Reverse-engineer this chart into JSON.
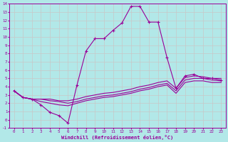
{
  "xlabel": "Windchill (Refroidissement éolien,°C)",
  "bg_color": "#b2e8e8",
  "grid_color": "#d0d0d0",
  "line_color": "#990099",
  "xlim": [
    -0.5,
    23.5
  ],
  "ylim": [
    -1,
    14
  ],
  "xticks": [
    0,
    1,
    2,
    3,
    4,
    5,
    6,
    7,
    8,
    9,
    10,
    11,
    12,
    13,
    14,
    15,
    16,
    17,
    18,
    19,
    20,
    21,
    22,
    23
  ],
  "yticks": [
    -1,
    0,
    1,
    2,
    3,
    4,
    5,
    6,
    7,
    8,
    9,
    10,
    11,
    12,
    13,
    14
  ],
  "series1_x": [
    0,
    1,
    2,
    3,
    4,
    5,
    6,
    7,
    8,
    9,
    10,
    11,
    12,
    13,
    14,
    15,
    16,
    17,
    18,
    19,
    20,
    21,
    22,
    23
  ],
  "series1_y": [
    3.5,
    2.7,
    2.5,
    1.8,
    0.9,
    0.5,
    -0.4,
    4.2,
    8.3,
    9.8,
    9.8,
    10.8,
    11.7,
    13.7,
    13.7,
    11.8,
    11.8,
    7.5,
    3.8,
    5.3,
    5.5,
    5.0,
    5.0,
    4.8
  ],
  "series2_x": [
    0,
    1,
    2,
    3,
    4,
    5,
    6,
    7,
    8,
    9,
    10,
    11,
    12,
    13,
    14,
    15,
    16,
    17,
    18,
    19,
    20,
    21,
    22,
    23
  ],
  "series2_y": [
    3.5,
    2.7,
    2.5,
    2.5,
    2.5,
    2.3,
    2.3,
    2.5,
    2.8,
    3.0,
    3.2,
    3.3,
    3.5,
    3.7,
    4.0,
    4.2,
    4.5,
    4.7,
    3.8,
    5.1,
    5.3,
    5.2,
    5.0,
    5.0
  ],
  "series3_x": [
    0,
    1,
    2,
    3,
    4,
    5,
    6,
    7,
    8,
    9,
    10,
    11,
    12,
    13,
    14,
    15,
    16,
    17,
    18,
    19,
    20,
    21,
    22,
    23
  ],
  "series3_y": [
    3.5,
    2.7,
    2.5,
    2.5,
    2.3,
    2.2,
    2.0,
    2.2,
    2.5,
    2.7,
    2.9,
    3.0,
    3.2,
    3.4,
    3.7,
    3.9,
    4.2,
    4.4,
    3.5,
    4.8,
    5.0,
    5.0,
    4.8,
    4.7
  ],
  "series4_x": [
    0,
    1,
    2,
    3,
    4,
    5,
    6,
    7,
    8,
    9,
    10,
    11,
    12,
    13,
    14,
    15,
    16,
    17,
    18,
    19,
    20,
    21,
    22,
    23
  ],
  "series4_y": [
    3.5,
    2.7,
    2.5,
    2.2,
    2.0,
    1.8,
    1.7,
    2.0,
    2.3,
    2.5,
    2.7,
    2.8,
    3.0,
    3.2,
    3.5,
    3.7,
    4.0,
    4.2,
    3.2,
    4.5,
    4.7,
    4.7,
    4.5,
    4.5
  ]
}
